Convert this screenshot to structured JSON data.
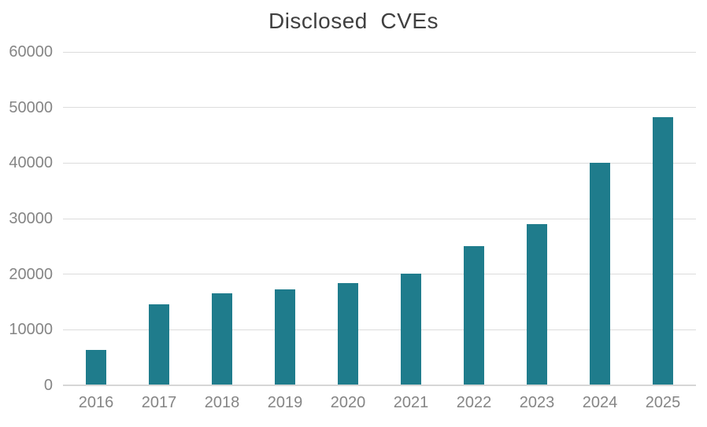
{
  "title": "Disclosed  CVEs",
  "chart_data": {
    "type": "bar",
    "title": "Disclosed  CVEs",
    "categories": [
      "2016",
      "2017",
      "2018",
      "2019",
      "2020",
      "2021",
      "2022",
      "2023",
      "2024",
      "2025"
    ],
    "values": [
      6400,
      14600,
      16500,
      17300,
      18400,
      20100,
      25000,
      29000,
      40000,
      48200
    ],
    "xlabel": "",
    "ylabel": "",
    "ylim": [
      0,
      60000
    ],
    "ytick_interval": 10000,
    "ytick_labels": [
      "0",
      "10000",
      "20000",
      "30000",
      "40000",
      "50000",
      "60000"
    ],
    "grid": true,
    "legend_position": "none",
    "series_name": "Disclosed CVEs"
  },
  "colors": {
    "bar": "#1f7c8c",
    "title_text": "#404040",
    "axis_text": "#858585",
    "gridline": "#dcdcdc",
    "axis_line": "#d6d6d6",
    "background": "#ffffff"
  }
}
